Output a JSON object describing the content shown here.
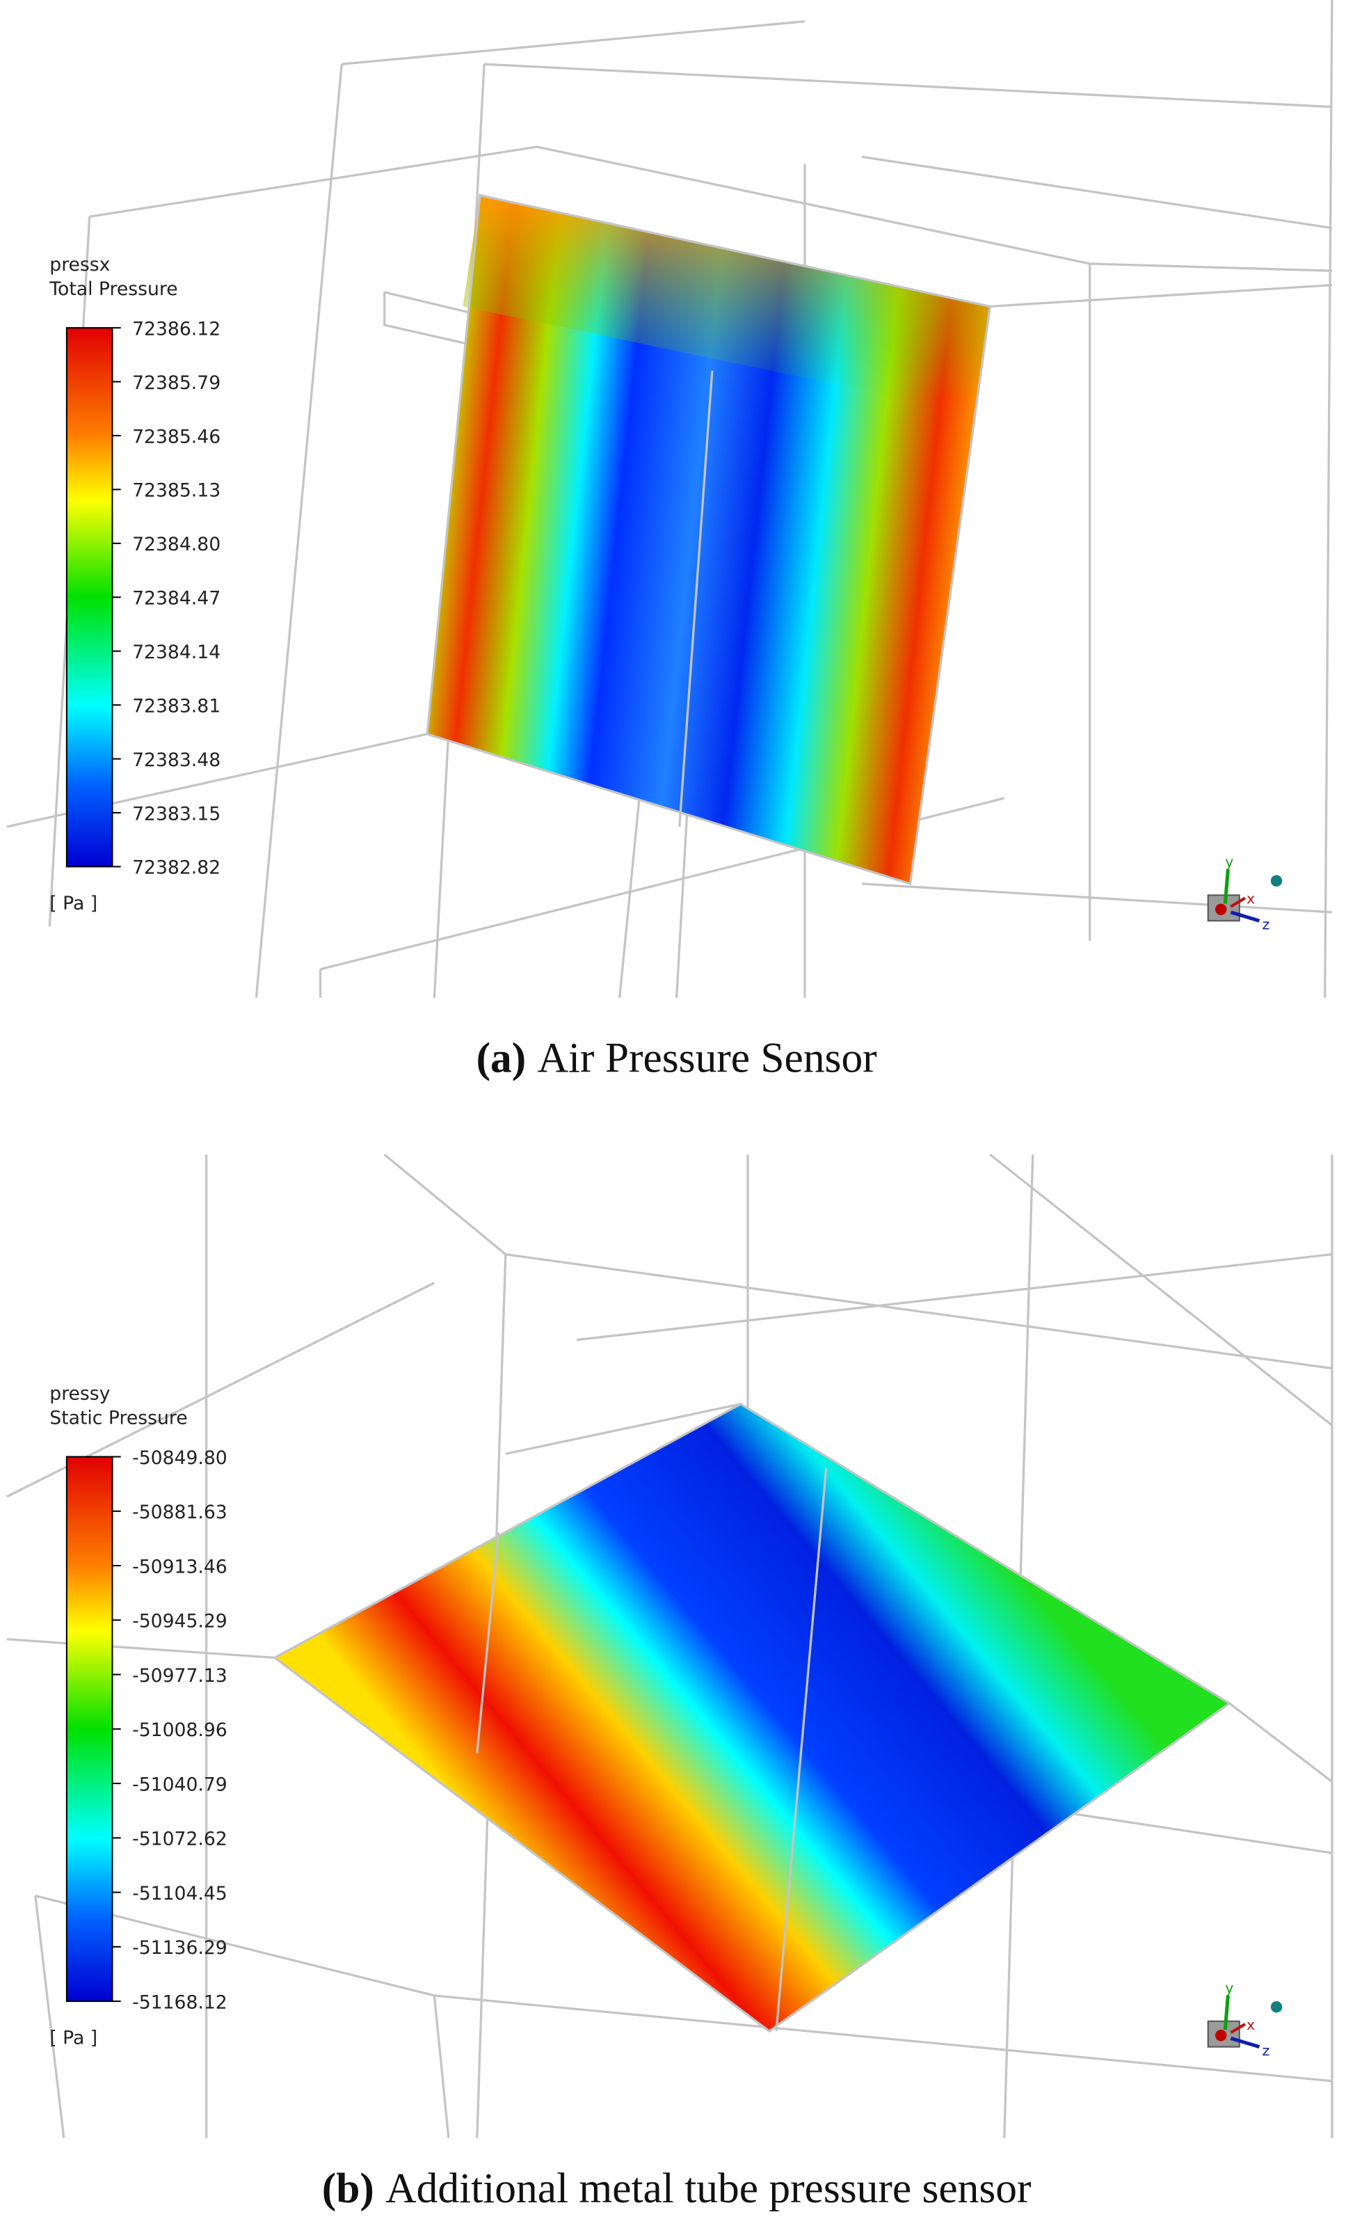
{
  "panels": [
    {
      "variable": "pressx",
      "quantity": "Total Pressure",
      "legend_ticks": [
        "72386.12",
        "72385.79",
        "72385.46",
        "72385.13",
        "72384.80",
        "72384.47",
        "72384.14",
        "72383.81",
        "72383.48",
        "72383.15",
        "72382.82"
      ],
      "unit": "[ Pa ]",
      "axes": [
        "y",
        "x",
        "z"
      ],
      "caption": {
        "label": "(a)",
        "text": "Air Pressure Sensor"
      }
    },
    {
      "variable": "pressy",
      "quantity": "Static Pressure",
      "legend_ticks": [
        "-50849.80",
        "-50881.63",
        "-50913.46",
        "-50945.29",
        "-50977.13",
        "-51008.96",
        "-51040.79",
        "-51072.62",
        "-51104.45",
        "-51136.29",
        "-51168.12"
      ],
      "unit": "[ Pa ]",
      "axes": [
        "y",
        "x",
        "z"
      ],
      "caption": {
        "label": "(b)",
        "text": "Additional metal tube pressure sensor"
      }
    }
  ]
}
